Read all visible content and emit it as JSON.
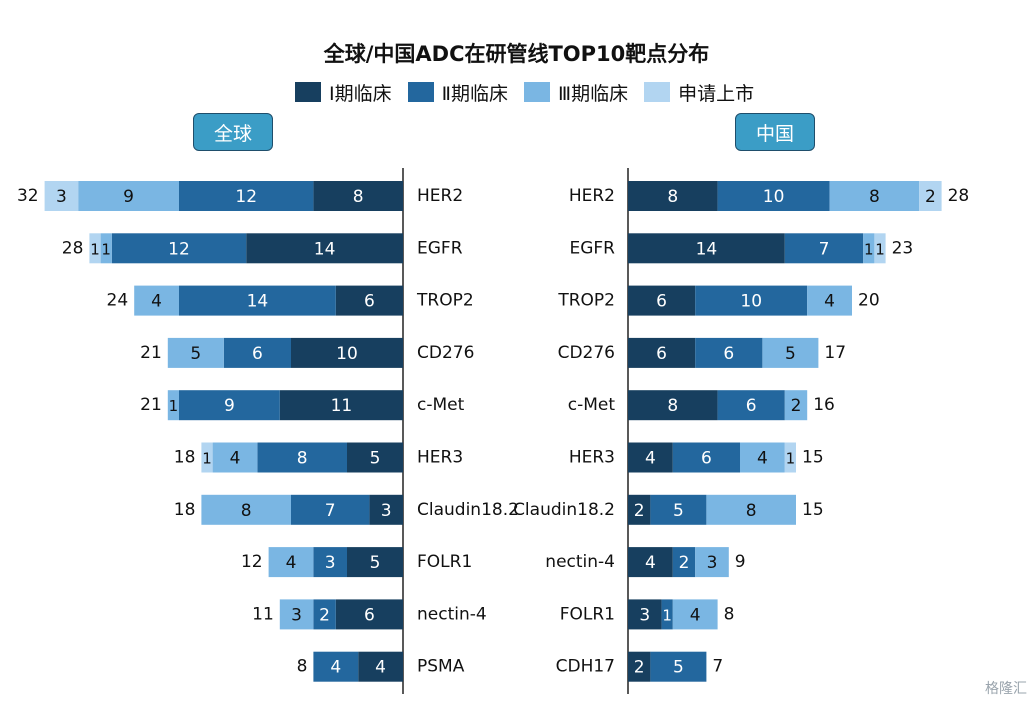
{
  "title": "全球/中国ADC在研管线TOP10靶点分布",
  "colors": {
    "phase1": "#173f5f",
    "phase2": "#23679e",
    "phase3": "#7ab6e3",
    "filing": "#b2d5f1"
  },
  "legend": [
    {
      "label": "Ⅰ期临床",
      "color": "#173f5f"
    },
    {
      "label": "Ⅱ期临床",
      "color": "#23679e"
    },
    {
      "label": "Ⅲ期临床",
      "color": "#7ab6e3"
    },
    {
      "label": "申请上市",
      "color": "#b2d5f1"
    }
  ],
  "regions": {
    "global": "全球",
    "china": "中国"
  },
  "watermark": "格隆汇",
  "chart_data": [
    {
      "type": "bar",
      "orientation": "horizontal-stacked",
      "title": "全球",
      "categories": [
        "HER2",
        "EGFR",
        "TROP2",
        "CD276",
        "c-Met",
        "HER3",
        "Claudin18.2",
        "FOLR1",
        "nectin-4",
        "PSMA"
      ],
      "series": [
        {
          "name": "Ⅰ期临床",
          "values": [
            8,
            14,
            6,
            10,
            11,
            5,
            3,
            5,
            6,
            4
          ]
        },
        {
          "name": "Ⅱ期临床",
          "values": [
            12,
            12,
            14,
            6,
            9,
            8,
            7,
            3,
            2,
            4
          ]
        },
        {
          "name": "Ⅲ期临床",
          "values": [
            9,
            1,
            4,
            5,
            1,
            4,
            8,
            4,
            3,
            0
          ]
        },
        {
          "name": "申请上市",
          "values": [
            3,
            1,
            0,
            0,
            0,
            1,
            0,
            0,
            0,
            0
          ]
        }
      ],
      "totals": [
        32,
        28,
        24,
        21,
        21,
        18,
        18,
        12,
        11,
        8
      ]
    },
    {
      "type": "bar",
      "orientation": "horizontal-stacked",
      "title": "中国",
      "categories": [
        "HER2",
        "EGFR",
        "TROP2",
        "CD276",
        "c-Met",
        "HER3",
        "Claudin18.2",
        "nectin-4",
        "FOLR1",
        "CDH17"
      ],
      "series": [
        {
          "name": "Ⅰ期临床",
          "values": [
            8,
            14,
            6,
            6,
            8,
            4,
            2,
            4,
            3,
            2
          ]
        },
        {
          "name": "Ⅱ期临床",
          "values": [
            10,
            7,
            10,
            6,
            6,
            6,
            5,
            2,
            1,
            5
          ]
        },
        {
          "name": "Ⅲ期临床",
          "values": [
            8,
            1,
            4,
            5,
            2,
            4,
            8,
            3,
            4,
            0
          ]
        },
        {
          "name": "申请上市",
          "values": [
            2,
            1,
            0,
            0,
            0,
            1,
            0,
            0,
            0,
            0
          ]
        }
      ],
      "totals": [
        28,
        23,
        20,
        17,
        16,
        15,
        15,
        9,
        8,
        7
      ]
    }
  ]
}
